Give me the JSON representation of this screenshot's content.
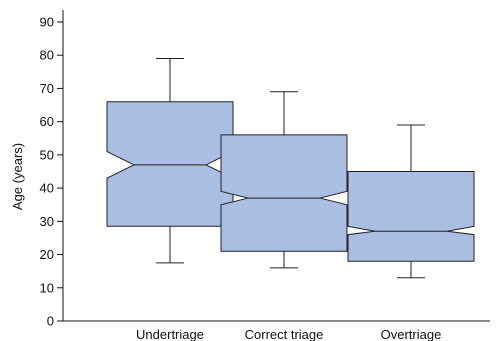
{
  "chart_data": {
    "type": "box",
    "title": "",
    "xlabel": "",
    "ylabel": "Age (years)",
    "ylim": [
      0,
      93
    ],
    "yticks": [
      0,
      10,
      20,
      30,
      40,
      50,
      60,
      70,
      80,
      90
    ],
    "notched": true,
    "grid": false,
    "legend": "none",
    "categories": [
      "Undertriage",
      "Correct triage",
      "Overtriage"
    ],
    "boxes": [
      {
        "category": "Undertriage",
        "whisker_low": 17.5,
        "q1": 28.5,
        "notch_low": 43,
        "median": 47,
        "notch_high": 51,
        "q3": 66,
        "whisker_high": 79
      },
      {
        "category": "Correct triage",
        "whisker_low": 16,
        "q1": 21,
        "notch_low": 35,
        "median": 37,
        "notch_high": 39,
        "q3": 56,
        "whisker_high": 69
      },
      {
        "category": "Overtriage",
        "whisker_low": 13,
        "q1": 18,
        "notch_low": 26,
        "median": 27,
        "notch_high": 28.5,
        "q3": 45,
        "whisker_high": 59
      }
    ],
    "colors": {
      "box_fill": "#aabde3",
      "box_stroke": "#222222",
      "axis": "#111111",
      "text": "#111111"
    }
  }
}
